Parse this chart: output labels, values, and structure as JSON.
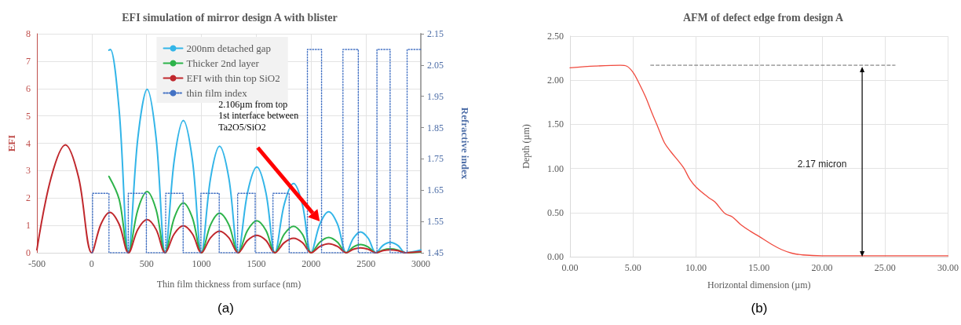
{
  "chart_data": [
    {
      "type": "line",
      "title": "EFI simulation of mirror design A with blister",
      "xlabel": "Thin film thickness from surface (nm)",
      "ylabel": "EFI",
      "y2label": "Refractive index",
      "xlim": [
        -500,
        3000
      ],
      "xticks": [
        -500,
        0,
        500,
        1000,
        1500,
        2000,
        2500,
        3000
      ],
      "ylim": [
        0,
        8
      ],
      "yticks": [
        0,
        1,
        2,
        3,
        4,
        5,
        6,
        7,
        8
      ],
      "y2lim": [
        1.45,
        2.15
      ],
      "y2ticks": [
        1.45,
        1.55,
        1.65,
        1.75,
        1.85,
        1.95,
        2.05,
        2.15
      ],
      "grid": true,
      "legend": "top",
      "marker": "none",
      "series": [
        {
          "name": "200nm detached gap",
          "color": "#33b5e8",
          "x": [
            157,
            170,
            250,
            335,
            420,
            505,
            587,
            669,
            752,
            835,
            918,
            1000,
            1083,
            1165,
            1250,
            1335,
            1420,
            1505,
            1588,
            1670,
            1755,
            1840,
            1920,
            2000,
            2080,
            2160,
            2240,
            2320,
            2385,
            2450,
            2520,
            2590,
            2655,
            2720,
            2790,
            2860,
            3000
          ],
          "values": [
            7.4,
            7.43,
            5.2,
            0,
            4.18,
            5.97,
            4.18,
            0,
            3.38,
            4.83,
            3.38,
            0,
            2.72,
            3.89,
            2.72,
            0,
            2.19,
            3.13,
            2.19,
            0,
            1.77,
            2.53,
            1.77,
            0,
            1.05,
            1.5,
            1.05,
            0,
            0.53,
            0.76,
            0.53,
            0,
            0.27,
            0.38,
            0.27,
            0,
            0.1
          ]
        },
        {
          "name": "Thicker 2nd layer",
          "color": "#2db34a",
          "x": [
            157,
            250,
            335,
            420,
            505,
            587,
            669,
            752,
            835,
            918,
            1000,
            1083,
            1165,
            1250,
            1335,
            1420,
            1505,
            1588,
            1670,
            1755,
            1840,
            1920,
            2000,
            2080,
            2160,
            2240,
            2320,
            2385,
            2450,
            2520,
            2590,
            2655,
            2720,
            2790,
            2860,
            3000
          ],
          "values": [
            2.79,
            1.95,
            0,
            1.57,
            2.24,
            1.57,
            0,
            1.27,
            1.82,
            1.27,
            0,
            1.02,
            1.45,
            1.02,
            0,
            0.82,
            1.17,
            0.82,
            0,
            0.68,
            0.97,
            0.68,
            0,
            0.39,
            0.56,
            0.39,
            0,
            0.21,
            0.3,
            0.21,
            0,
            0.1,
            0.14,
            0.1,
            0,
            0.03
          ]
        },
        {
          "name": "EFI with thin top SiO2",
          "color": "#c0282d",
          "x": [
            -500,
            -370,
            -240,
            -120,
            0,
            83,
            165,
            250,
            335,
            420,
            505,
            587,
            669,
            752,
            835,
            918,
            1000,
            1083,
            1165,
            1250,
            1335,
            1420,
            1505,
            1588,
            1670,
            1755,
            1840,
            1920,
            2000,
            2080,
            2160,
            2240,
            2320,
            2385,
            2450,
            2520,
            2590,
            2655,
            2720,
            2790,
            2860,
            3000
          ],
          "values": [
            0.11,
            2.75,
            3.94,
            2.75,
            0,
            1.04,
            1.48,
            1.04,
            0,
            0.85,
            1.21,
            0.85,
            0,
            0.69,
            0.99,
            0.69,
            0,
            0.55,
            0.79,
            0.55,
            0,
            0.45,
            0.64,
            0.45,
            0,
            0.37,
            0.53,
            0.37,
            0,
            0.23,
            0.33,
            0.23,
            0,
            0.13,
            0.18,
            0.13,
            0,
            0.08,
            0.11,
            0.08,
            0,
            0.04
          ]
        },
        {
          "name": "thin film index",
          "type": "step",
          "axis": "y2",
          "color": "#4472c4",
          "line_style": "dotted",
          "x": [
            0,
            7,
            157,
            333,
            498,
            674,
            833,
            995,
            1162,
            1330,
            1490,
            1652,
            1800,
            1966,
            2095,
            2290,
            2430,
            2600,
            2720,
            2875,
            3000
          ],
          "values": [
            1.45,
            1.64,
            1.45,
            1.64,
            1.45,
            1.64,
            1.45,
            1.64,
            1.45,
            1.64,
            1.45,
            1.64,
            1.45,
            2.1,
            1.45,
            2.1,
            1.45,
            2.1,
            1.45,
            2.1,
            2.1
          ]
        }
      ],
      "annotations": [
        "2.106µm from top\n1st interface between\nTa2O5/SiO2",
        "(a)"
      ]
    },
    {
      "type": "line",
      "title": "AFM of defect edge from design A",
      "xlabel": "Horizontal dimension (µm)",
      "ylabel": "Depth (µm)",
      "xlim": [
        0,
        30
      ],
      "xticks": [
        {
          "value": 0,
          "label": "0.00"
        },
        {
          "value": 5,
          "label": "5.00"
        },
        {
          "value": 10,
          "label": "10.00"
        },
        {
          "value": 15,
          "label": "15.00"
        },
        {
          "value": 20,
          "label": "20.00"
        },
        {
          "value": 25,
          "label": "25.00"
        },
        {
          "value": 30,
          "label": "30.00"
        }
      ],
      "ylim": [
        0,
        2.5
      ],
      "yticks": [
        {
          "value": 0,
          "label": "0.00"
        },
        {
          "value": 0.5,
          "label": "0.50"
        },
        {
          "value": 1,
          "label": "1.00"
        },
        {
          "value": 1.5,
          "label": "1.50"
        },
        {
          "value": 2,
          "label": "2.00"
        },
        {
          "value": 2.5,
          "label": "2.50"
        }
      ],
      "grid": true,
      "marker": "none",
      "series": [
        {
          "color": "#f04a3e",
          "x": [
            0,
            2,
            4,
            4.5,
            5,
            5.5,
            6,
            6.5,
            7,
            7.5,
            8,
            9,
            9.5,
            10,
            11,
            11.5,
            12.3,
            12.9,
            13.5,
            14.3,
            15,
            16,
            16.8,
            17.6,
            18.5,
            20,
            25,
            30
          ],
          "values": [
            2.14,
            2.16,
            2.17,
            2.16,
            2.09,
            1.96,
            1.81,
            1.63,
            1.46,
            1.29,
            1.19,
            1.01,
            0.88,
            0.79,
            0.67,
            0.62,
            0.49,
            0.45,
            0.37,
            0.29,
            0.23,
            0.14,
            0.08,
            0.04,
            0.02,
            0.01,
            0.01,
            0.01
          ]
        },
        {
          "color": "#404040",
          "line_style": "dashed",
          "x": [
            6.4,
            25.8
          ],
          "values": [
            2.17,
            2.17
          ]
        }
      ],
      "annotations": [
        "2.17 micron",
        "(b)"
      ]
    }
  ]
}
